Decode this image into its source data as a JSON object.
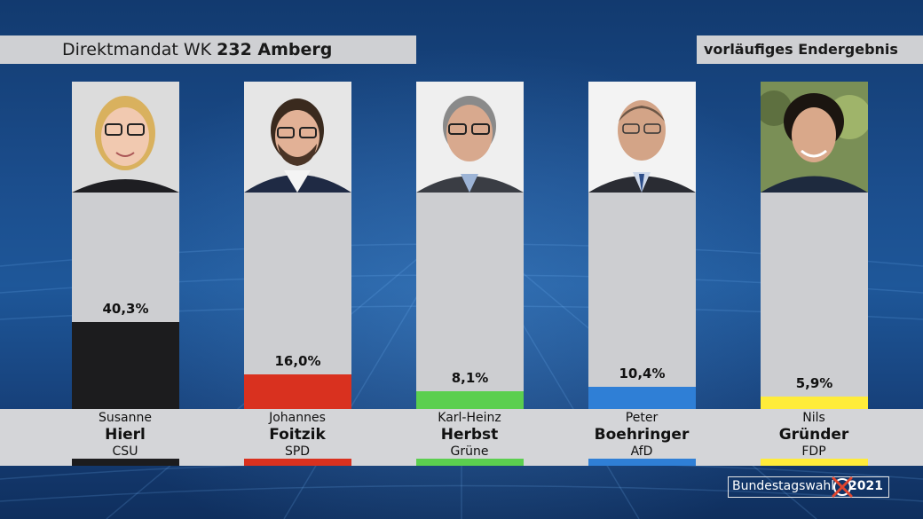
{
  "header": {
    "title_prefix": "Direktmandat WK",
    "title_wk": "232 Amberg",
    "status": "vorläufiges Endergebnis"
  },
  "chart_data": {
    "type": "bar",
    "title": "Direktmandat WK 232 Amberg",
    "subtitle": "vorläufiges Endergebnis",
    "categories": [
      "Susanne Hierl",
      "Johannes Foitzik",
      "Karl-Heinz Herbst",
      "Peter Boehringer",
      "Nils Gründer"
    ],
    "values": [
      40.3,
      16.0,
      8.1,
      10.4,
      5.9
    ],
    "ylim": [
      0,
      100
    ],
    "candidates": [
      {
        "first": "Susanne",
        "last": "Hierl",
        "party": "CSU",
        "value": 40.3,
        "label": "40,3%",
        "color": "#1c1c1e"
      },
      {
        "first": "Johannes",
        "last": "Foitzik",
        "party": "SPD",
        "value": 16.0,
        "label": "16,0%",
        "color": "#d9311f"
      },
      {
        "first": "Karl-Heinz",
        "last": "Herbst",
        "party": "Grüne",
        "value": 8.1,
        "label": "8,1%",
        "color": "#5bcf4f"
      },
      {
        "first": "Peter",
        "last": "Boehringer",
        "party": "AfD",
        "value": 10.4,
        "label": "10,4%",
        "color": "#2f7fd6"
      },
      {
        "first": "Nils",
        "last": "Gründer",
        "party": "FDP",
        "value": 5.9,
        "label": "5,9%",
        "color": "#ffec3a"
      }
    ]
  },
  "logo": {
    "text": "Bundestagswahl",
    "year": "2021"
  }
}
